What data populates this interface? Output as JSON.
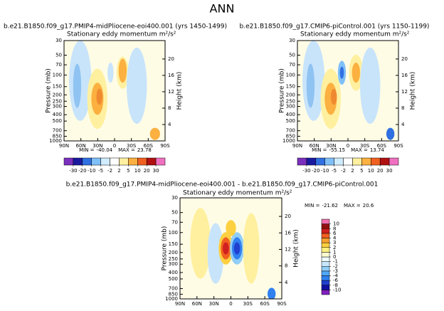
{
  "figure_title": "ANN",
  "chart_data": [
    {
      "type": "contour",
      "title": "b.e21.B1850.f09_g17.PMIP4-midPliocene-eoi400.001 (yrs 1450-1499)",
      "subtitle": "Stationary eddy momentum  m²/s²",
      "y_label": "Pressure (mb)",
      "y2_label": "Height (km)",
      "xlim": [
        90,
        -90
      ],
      "xticks": [
        {
          "value": 90,
          "label": "90N"
        },
        {
          "value": 60,
          "label": "60N"
        },
        {
          "value": 30,
          "label": "30N"
        },
        0,
        {
          "value": -30,
          "label": "30S"
        },
        {
          "value": -60,
          "label": "60S"
        },
        {
          "value": -90,
          "label": "90S"
        }
      ],
      "ylim": [
        1000,
        30
      ],
      "log_y": true,
      "yticks": [
        30,
        50,
        70,
        100,
        150,
        200,
        250,
        300,
        400,
        500,
        700,
        850,
        1000
      ],
      "y2lim": [
        0,
        24.5
      ],
      "y2ticks": [
        4,
        8,
        12,
        16,
        20
      ],
      "min_label": "MIN =",
      "min": -40.04,
      "max_label": "MAX =",
      "max": 23.78,
      "colorbar": {
        "orientation": "horizontal",
        "levels": [
          -30,
          -20,
          -10,
          -5,
          -2,
          2,
          5,
          10,
          20,
          30
        ],
        "colors": [
          "#7b2fbe",
          "#1a1aa0",
          "#3070e0",
          "#80c0f8",
          "#d0ecff",
          "#ffffff",
          "#fff0a0",
          "#fbb040",
          "#f06020",
          "#b01010",
          "#f070c0"
        ]
      }
    },
    {
      "type": "contour",
      "title": "b.e21.B1850.f09_g17.CMIP6-piControl.001 (yrs 1150-1199)",
      "subtitle": "Stationary eddy momentum  m²/s²",
      "y_label": "Pressure (mb)",
      "y2_label": "Height (km)",
      "xlim": [
        90,
        -90
      ],
      "xticks": [
        {
          "value": 90,
          "label": "90N"
        },
        {
          "value": 60,
          "label": "60N"
        },
        {
          "value": 30,
          "label": "30N"
        },
        0,
        {
          "value": -30,
          "label": "30S"
        },
        {
          "value": -60,
          "label": "60S"
        },
        {
          "value": -90,
          "label": "90S"
        }
      ],
      "ylim": [
        1000,
        30
      ],
      "log_y": true,
      "yticks": [
        30,
        50,
        70,
        100,
        150,
        200,
        250,
        300,
        400,
        500,
        700,
        850,
        1000
      ],
      "y2lim": [
        0,
        24.5
      ],
      "y2ticks": [
        4,
        8,
        12,
        16,
        20
      ],
      "min_label": "MIN =",
      "min": -55.15,
      "max_label": "MAX =",
      "max": 13.74,
      "colorbar": {
        "orientation": "horizontal",
        "levels": [
          -30,
          -20,
          -10,
          -5,
          -2,
          2,
          5,
          10,
          20,
          30
        ],
        "colors": [
          "#7b2fbe",
          "#1a1aa0",
          "#3070e0",
          "#80c0f8",
          "#d0ecff",
          "#ffffff",
          "#fff0a0",
          "#fbb040",
          "#f06020",
          "#b01010",
          "#f070c0"
        ]
      }
    },
    {
      "type": "contour",
      "title": "b.e21.B1850.f09_g17.PMIP4-midPliocene-eoi400.001 - b.e21.B1850.f09_g17.CMIP6-piControl.001",
      "subtitle": "Stationary eddy momentum  m²/s²",
      "y_label": "Pressure (mb)",
      "y2_label": "Height (km)",
      "xlim": [
        90,
        -90
      ],
      "xticks": [
        {
          "value": 90,
          "label": "90N"
        },
        {
          "value": 60,
          "label": "60N"
        },
        {
          "value": 30,
          "label": "30N"
        },
        0,
        {
          "value": -30,
          "label": "30S"
        },
        {
          "value": -60,
          "label": "60S"
        },
        {
          "value": -90,
          "label": "90S"
        }
      ],
      "ylim": [
        1000,
        30
      ],
      "log_y": true,
      "yticks": [
        30,
        50,
        70,
        100,
        150,
        200,
        250,
        300,
        400,
        500,
        700,
        850,
        1000
      ],
      "y2lim": [
        0,
        24.5
      ],
      "y2ticks": [
        4,
        8,
        12,
        16,
        20
      ],
      "min_label": "MIN =",
      "min": -21.62,
      "max_label": "MAX =",
      "max": 20.6,
      "colorbar": {
        "orientation": "vertical",
        "levels": [
          -10,
          -8,
          -6,
          -4,
          -3,
          -2,
          -1,
          0,
          1,
          2,
          3,
          4,
          6,
          8,
          10
        ],
        "colors": [
          "#8020c0",
          "#1010a0",
          "#2040d0",
          "#3080f0",
          "#50a8f8",
          "#90cef8",
          "#c8e8ff",
          "#eefaff",
          "#ffffd0",
          "#fff080",
          "#fcd040",
          "#f8a030",
          "#f06020",
          "#d02020",
          "#901010",
          "#f070b0"
        ]
      }
    }
  ]
}
